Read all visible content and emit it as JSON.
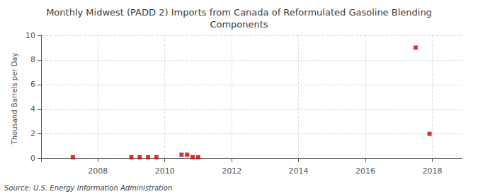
{
  "chart_data": {
    "type": "scatter",
    "title": "Monthly Midwest (PADD 2) Imports from Canada of Reformulated Gasoline Blending\nComponents",
    "ylabel": "Thousand Barrels per Day",
    "annotations": [
      "Source: U.S. Energy Information Administration"
    ],
    "x": [
      2007.25,
      2009.0,
      2009.25,
      2009.5,
      2009.75,
      2010.5,
      2010.667,
      2010.833,
      2011.0,
      2017.5,
      2017.917
    ],
    "values": [
      0.1,
      0.1,
      0.1,
      0.1,
      0.1,
      0.3,
      0.3,
      0.1,
      0.1,
      9.0,
      2.0
    ],
    "color": "#cc0000",
    "marker": "square",
    "xlim": [
      2006.3,
      2018.9
    ],
    "xticks": [
      2008,
      2010,
      2012,
      2014,
      2016,
      2018
    ],
    "ylim": [
      -0.25,
      10.0
    ],
    "yticks": [
      0,
      2,
      4,
      6,
      8,
      10
    ],
    "grid": true
  }
}
